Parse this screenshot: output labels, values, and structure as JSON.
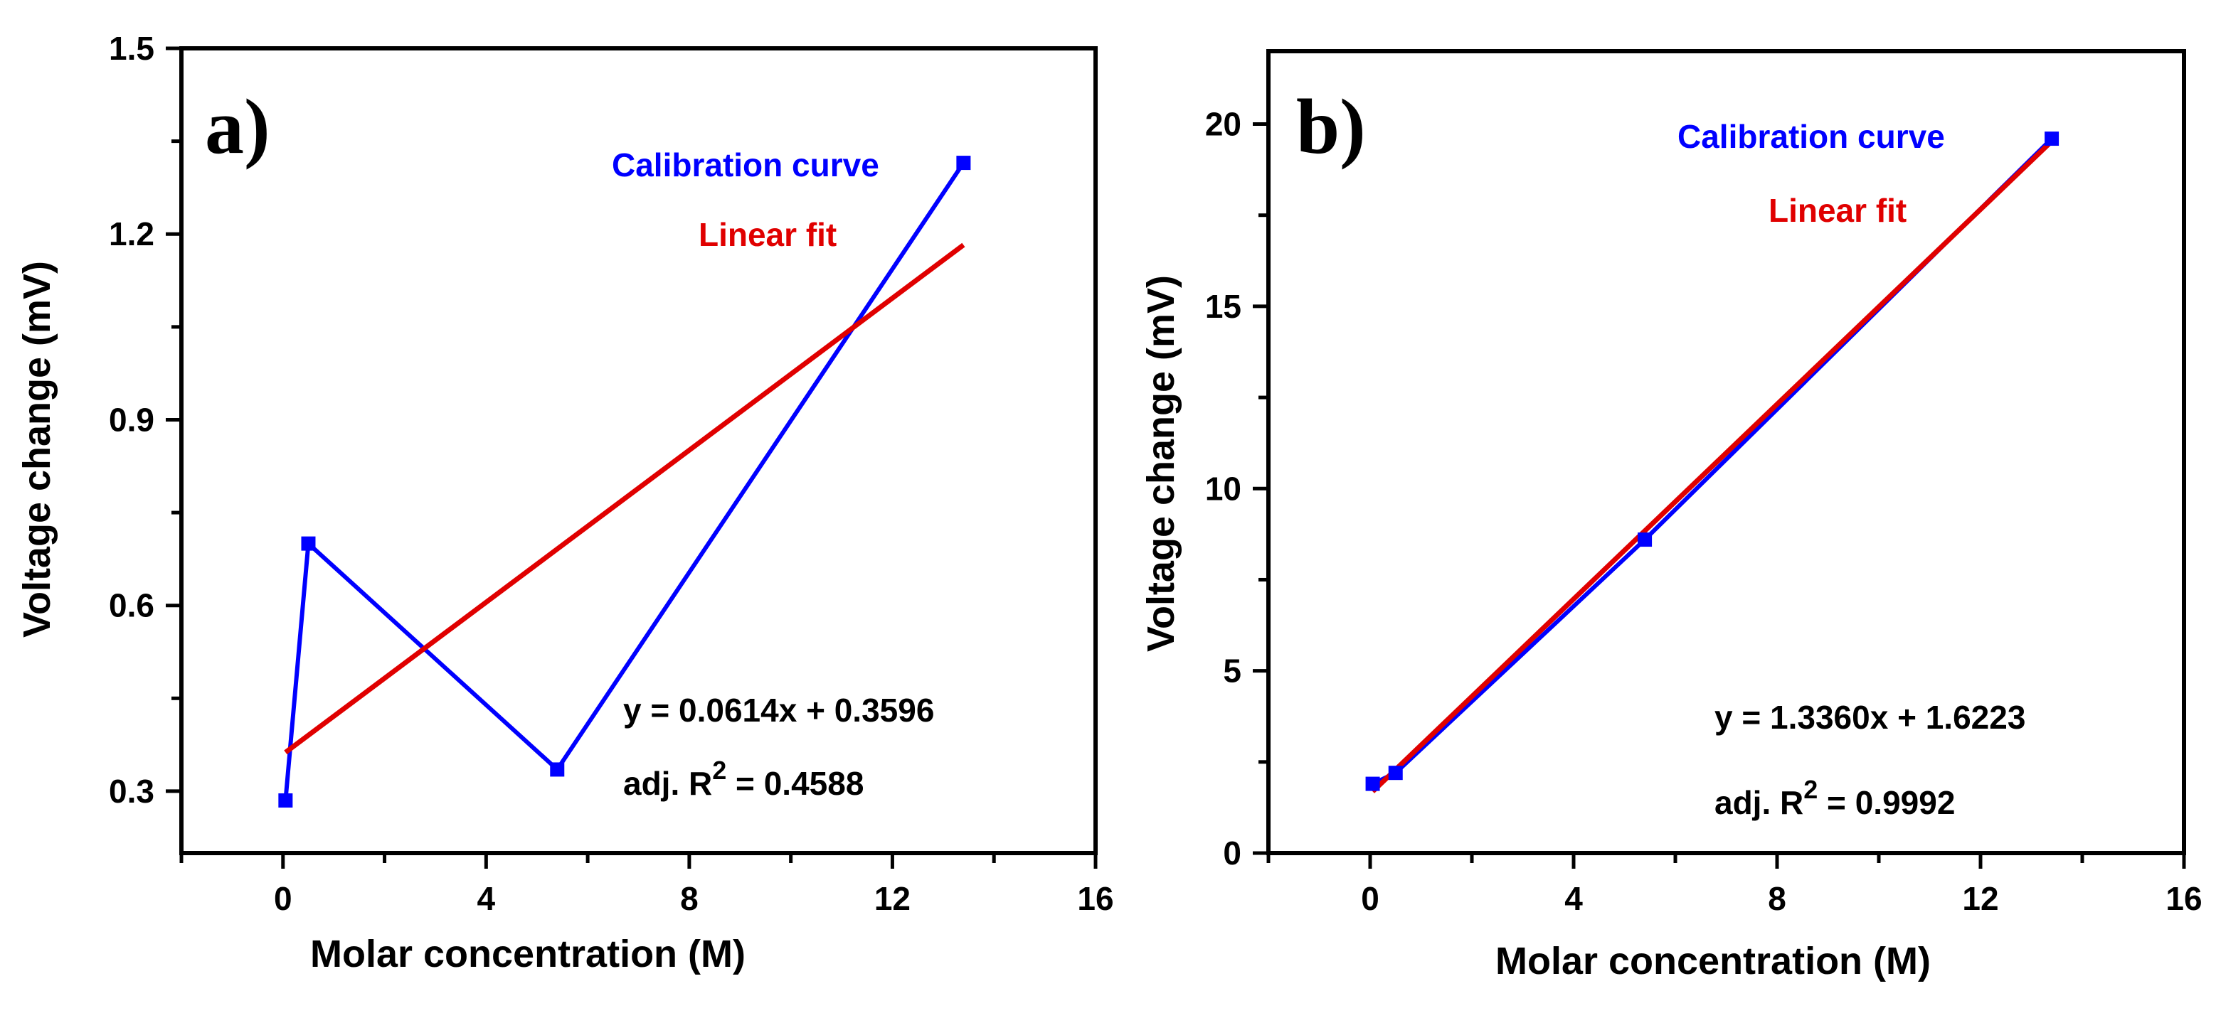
{
  "chart_data": [
    {
      "type": "line",
      "panel_label": "a)",
      "title": "",
      "xlabel": "Molar concentration (M)",
      "ylabel": "Voltage change (mV)",
      "xlim": [
        -2,
        16
      ],
      "ylim": [
        0.2,
        1.5
      ],
      "xticks": [
        0,
        4,
        8,
        12,
        16
      ],
      "yticks": [
        0.3,
        0.6,
        0.9,
        1.2,
        1.5
      ],
      "xtick_labels": [
        "0",
        "4",
        "8",
        "12",
        "16"
      ],
      "ytick_labels": [
        "0.3",
        "0.6",
        "0.9",
        "1.2",
        "1.5"
      ],
      "grid": false,
      "series": [
        {
          "name": "Calibration curve",
          "color": "#0000ff",
          "marker": "square",
          "x": [
            0.05,
            0.5,
            5.4,
            13.4
          ],
          "y": [
            0.285,
            0.7,
            0.335,
            1.315
          ]
        },
        {
          "name": "Linear fit",
          "color": "#e00000",
          "marker": "none",
          "x": [
            0.05,
            13.4
          ],
          "y": [
            0.3627,
            1.1824
          ]
        }
      ],
      "equation": "y = 0.0614x + 0.3596",
      "r2_prefix": "adj. R",
      "r2_sup": "2",
      "r2_value": " = 0.4588"
    },
    {
      "type": "line",
      "panel_label": "b)",
      "title": "",
      "xlabel": "Molar concentration (M)",
      "ylabel": "Voltage change (mV)",
      "xlim": [
        -2,
        16
      ],
      "ylim": [
        0,
        22
      ],
      "xticks": [
        0,
        4,
        8,
        12,
        16
      ],
      "yticks": [
        0,
        5,
        10,
        15,
        20
      ],
      "xtick_labels": [
        "0",
        "4",
        "8",
        "12",
        "16"
      ],
      "ytick_labels": [
        "0",
        "5",
        "10",
        "15",
        "20"
      ],
      "grid": false,
      "series": [
        {
          "name": "Calibration curve",
          "color": "#0000ff",
          "marker": "square",
          "x": [
            0.05,
            0.5,
            5.4,
            13.4
          ],
          "y": [
            1.9,
            2.2,
            8.6,
            19.6
          ]
        },
        {
          "name": "Linear fit",
          "color": "#e00000",
          "marker": "none",
          "x": [
            0.05,
            13.4
          ],
          "y": [
            1.69,
            19.53
          ]
        }
      ],
      "equation": "y = 1.3360x + 1.6223",
      "r2_prefix": "adj. R",
      "r2_sup": "2",
      "r2_value": " = 0.9992"
    }
  ]
}
